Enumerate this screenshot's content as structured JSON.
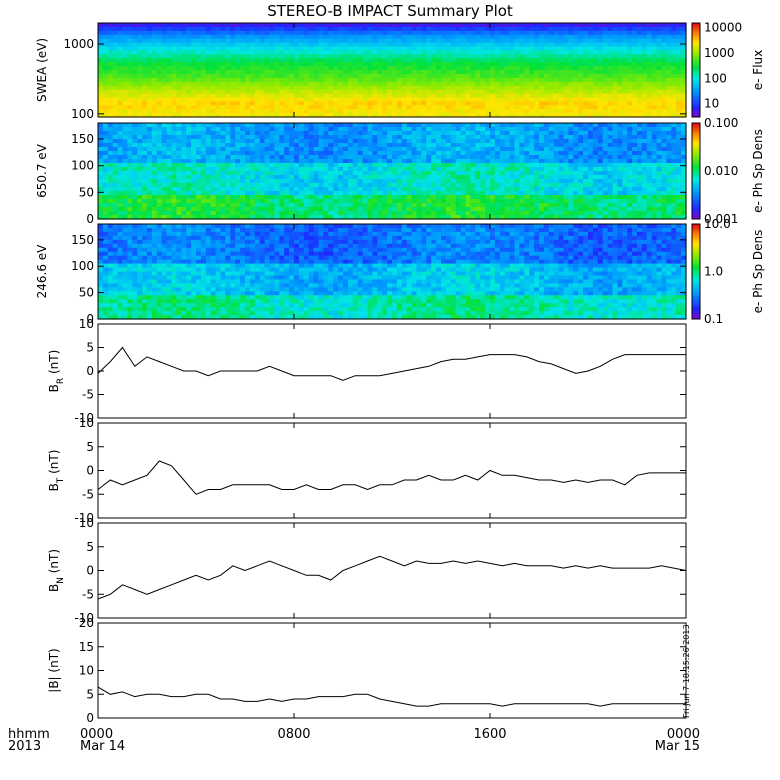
{
  "title": "STEREO-B IMPACT Summary Plot",
  "footer": {
    "row1_left": "hhmm",
    "row2_left": "2013",
    "start_date": "Mar 14",
    "end_date": "Mar 15",
    "stamp": "Fri Jun  7 18:15:26 2013"
  },
  "x_ticks": [
    "0000",
    "0800",
    "1600",
    "0000"
  ],
  "colors": {
    "line": "#000000",
    "background": "#ffffff"
  },
  "chart_data": [
    {
      "type": "heatmap",
      "ylabel": "SWEA (eV)",
      "yscale": "log",
      "ylim": [
        90,
        2000
      ],
      "yticks": [
        "1000",
        "100"
      ],
      "colorbar": {
        "label": "e- Flux",
        "scale": "log",
        "ticks": [
          "10000",
          "1000",
          "100",
          "10"
        ],
        "range": [
          3,
          15000
        ]
      },
      "description_levels": [
        {
          "energy": 1900,
          "level": 0.06
        },
        {
          "energy": 1400,
          "level": 0.28
        },
        {
          "energy": 1000,
          "level": 0.42
        },
        {
          "energy": 600,
          "level": 0.55
        },
        {
          "energy": 350,
          "level": 0.62
        },
        {
          "energy": 200,
          "level": 0.72
        },
        {
          "energy": 130,
          "level": 0.82
        },
        {
          "energy": 100,
          "level": 0.78
        }
      ]
    },
    {
      "type": "heatmap",
      "ylabel": "650.7 eV",
      "ylim": [
        0,
        180
      ],
      "yticks": [
        "150",
        "100",
        "50",
        "0"
      ],
      "colorbar": {
        "label": "e- Ph Sp Dens",
        "scale": "log",
        "ticks": [
          "0.100",
          "0.010",
          "0.001"
        ],
        "range": [
          0.001,
          0.1
        ]
      },
      "base_level": 0.42
    },
    {
      "type": "heatmap",
      "ylabel": "246.6 eV",
      "ylim": [
        0,
        180
      ],
      "yticks": [
        "150",
        "100",
        "50",
        "0"
      ],
      "colorbar": {
        "label": "e- Ph Sp Dens",
        "scale": "log",
        "ticks": [
          "10.0",
          "1.0",
          "0.1"
        ],
        "range": [
          0.1,
          10
        ]
      },
      "base_level": 0.35
    },
    {
      "type": "line",
      "ylabel": "B_R (nT)",
      "ylabel_main": "B",
      "ylabel_sub": "R",
      "ylabel_unit": " (nT)",
      "ylim": [
        -10,
        10
      ],
      "yticks": [
        "10",
        "5",
        "0",
        "-5",
        "-10"
      ],
      "x": [
        0.0,
        0.5,
        1.0,
        1.5,
        2.0,
        2.5,
        3.0,
        3.5,
        4.0,
        4.5,
        5.0,
        5.5,
        6.0,
        6.5,
        7.0,
        7.5,
        8.0,
        8.5,
        9.0,
        9.5,
        10.0,
        10.5,
        11.0,
        11.5,
        12.0,
        12.5,
        13.0,
        13.5,
        14.0,
        14.5,
        15.0,
        15.5,
        16.0,
        16.5,
        17.0,
        17.5,
        18.0,
        18.5,
        19.0,
        19.5,
        20.0,
        20.5,
        21.0,
        21.5,
        22.0,
        22.5,
        23.0,
        23.5,
        24.0
      ],
      "y": [
        -0.5,
        2,
        5,
        1,
        3,
        2,
        1,
        0,
        0,
        -1,
        0,
        0,
        0,
        0,
        1,
        0,
        -1,
        -1,
        -1,
        -1,
        -2,
        -1,
        -1,
        -1,
        -0.5,
        0,
        0.5,
        1,
        2,
        2.5,
        2.5,
        3,
        3.5,
        3.5,
        3.5,
        3,
        2,
        1.5,
        0.5,
        -0.5,
        0,
        1,
        2.5,
        3.5,
        3.5,
        3.5,
        3.5,
        3.5,
        3.5
      ]
    },
    {
      "type": "line",
      "ylabel": "B_T (nT)",
      "ylabel_main": "B",
      "ylabel_sub": "T",
      "ylabel_unit": " (nT)",
      "ylim": [
        -10,
        10
      ],
      "yticks": [
        "10",
        "5",
        "0",
        "-5",
        "-10"
      ],
      "x": [
        0.0,
        0.5,
        1.0,
        1.5,
        2.0,
        2.5,
        3.0,
        3.5,
        4.0,
        4.5,
        5.0,
        5.5,
        6.0,
        6.5,
        7.0,
        7.5,
        8.0,
        8.5,
        9.0,
        9.5,
        10.0,
        10.5,
        11.0,
        11.5,
        12.0,
        12.5,
        13.0,
        13.5,
        14.0,
        14.5,
        15.0,
        15.5,
        16.0,
        16.5,
        17.0,
        17.5,
        18.0,
        18.5,
        19.0,
        19.5,
        20.0,
        20.5,
        21.0,
        21.5,
        22.0,
        22.5,
        23.0,
        23.5,
        24.0
      ],
      "y": [
        -4,
        -2,
        -3,
        -2,
        -1,
        2,
        1,
        -2,
        -5,
        -4,
        -4,
        -3,
        -3,
        -3,
        -3,
        -4,
        -4,
        -3,
        -4,
        -4,
        -3,
        -3,
        -4,
        -3,
        -3,
        -2,
        -2,
        -1,
        -2,
        -2,
        -1,
        -2,
        0,
        -1,
        -1,
        -1.5,
        -2,
        -2,
        -2.5,
        -2,
        -2.5,
        -2,
        -2,
        -3,
        -1,
        -0.5,
        -0.5,
        -0.5,
        -0.5
      ]
    },
    {
      "type": "line",
      "ylabel": "B_N (nT)",
      "ylabel_main": "B",
      "ylabel_sub": "N",
      "ylabel_unit": " (nT)",
      "ylim": [
        -10,
        10
      ],
      "yticks": [
        "10",
        "5",
        "0",
        "-5",
        "-10"
      ],
      "x": [
        0.0,
        0.5,
        1.0,
        1.5,
        2.0,
        2.5,
        3.0,
        3.5,
        4.0,
        4.5,
        5.0,
        5.5,
        6.0,
        6.5,
        7.0,
        7.5,
        8.0,
        8.5,
        9.0,
        9.5,
        10.0,
        10.5,
        11.0,
        11.5,
        12.0,
        12.5,
        13.0,
        13.5,
        14.0,
        14.5,
        15.0,
        15.5,
        16.0,
        16.5,
        17.0,
        17.5,
        18.0,
        18.5,
        19.0,
        19.5,
        20.0,
        20.5,
        21.0,
        21.5,
        22.0,
        22.5,
        23.0,
        23.5,
        24.0
      ],
      "y": [
        -6,
        -5,
        -3,
        -4,
        -5,
        -4,
        -3,
        -2,
        -1,
        -2,
        -1,
        1,
        0,
        1,
        2,
        1,
        0,
        -1,
        -1,
        -2,
        0,
        1,
        2,
        3,
        2,
        1,
        2,
        1.5,
        1.5,
        2,
        1.5,
        2,
        1.5,
        1,
        1.5,
        1,
        1,
        1,
        0.5,
        1,
        0.5,
        1,
        0.5,
        0.5,
        0.5,
        0.5,
        1,
        0.5,
        0
      ]
    },
    {
      "type": "line",
      "ylabel": "|B| (nT)",
      "ylabel_main": "|B|",
      "ylabel_sub": "",
      "ylabel_unit": " (nT)",
      "ylim": [
        0,
        20
      ],
      "yticks": [
        "20",
        "15",
        "10",
        "5",
        "0"
      ],
      "x": [
        0.0,
        0.5,
        1.0,
        1.5,
        2.0,
        2.5,
        3.0,
        3.5,
        4.0,
        4.5,
        5.0,
        5.5,
        6.0,
        6.5,
        7.0,
        7.5,
        8.0,
        8.5,
        9.0,
        9.5,
        10.0,
        10.5,
        11.0,
        11.5,
        12.0,
        12.5,
        13.0,
        13.5,
        14.0,
        14.5,
        15.0,
        15.5,
        16.0,
        16.5,
        17.0,
        17.5,
        18.0,
        18.5,
        19.0,
        19.5,
        20.0,
        20.5,
        21.0,
        21.5,
        22.0,
        22.5,
        23.0,
        23.5,
        24.0
      ],
      "y": [
        6.5,
        5,
        5.5,
        4.5,
        5,
        5,
        4.5,
        4.5,
        5,
        5,
        4,
        4,
        3.5,
        3.5,
        4,
        3.5,
        4,
        4,
        4.5,
        4.5,
        4.5,
        5,
        5,
        4,
        3.5,
        3,
        2.5,
        2.5,
        3,
        3,
        3,
        3,
        3,
        2.5,
        3,
        3,
        3,
        3,
        3,
        3,
        3,
        2.5,
        3,
        3,
        3,
        3,
        3,
        3,
        3
      ]
    }
  ]
}
